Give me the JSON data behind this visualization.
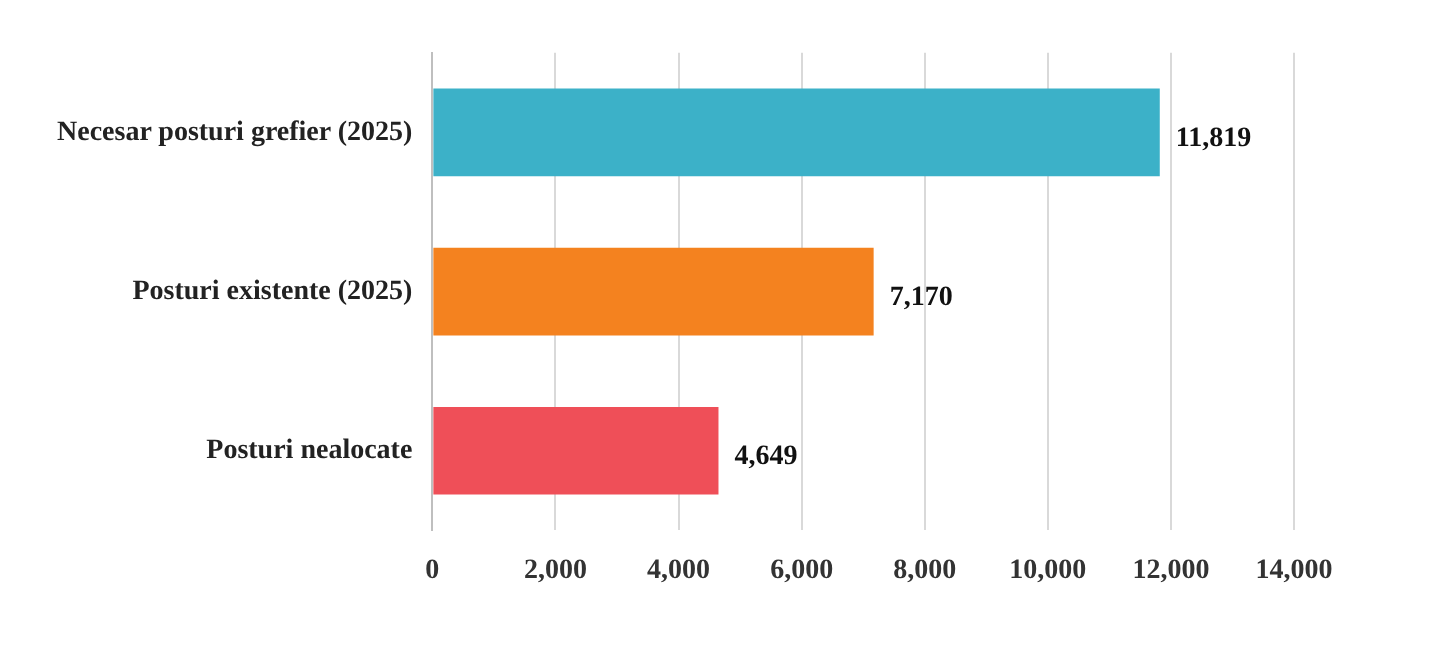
{
  "chart_data": {
    "type": "bar",
    "orientation": "horizontal",
    "categories": [
      "Necesar posturi grefier (2025)",
      "Posturi existente (2025)",
      "Posturi nealocate"
    ],
    "values": [
      11819,
      7170,
      4649
    ],
    "colors": [
      "#3cb1c8",
      "#f4821f",
      "#ef4f58"
    ],
    "value_labels": [
      "11,819",
      "7,170",
      "4,649"
    ],
    "xlim": [
      0,
      14000
    ],
    "xticks": [
      {
        "value": 0,
        "label": "0"
      },
      {
        "value": 2000,
        "label": "2,000"
      },
      {
        "value": 4000,
        "label": "4,000"
      },
      {
        "value": 6000,
        "label": "6,000"
      },
      {
        "value": 8000,
        "label": "8,000"
      },
      {
        "value": 10000,
        "label": "10,000"
      },
      {
        "value": 12000,
        "label": "12,000"
      },
      {
        "value": 14000,
        "label": "14,000"
      }
    ],
    "grid": "x"
  }
}
